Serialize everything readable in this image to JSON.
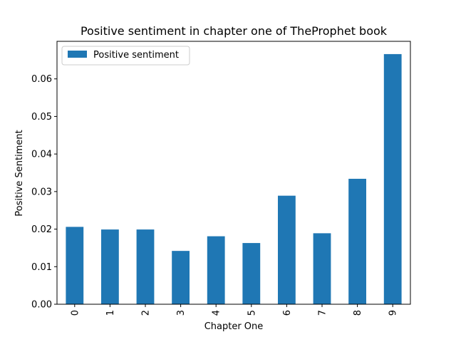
{
  "chart_data": {
    "type": "bar",
    "title": "Positive sentiment in chapter one of TheProphet book",
    "xlabel": "Chapter One",
    "ylabel": "Positive Sentiment",
    "categories": [
      "0",
      "1",
      "2",
      "3",
      "4",
      "5",
      "6",
      "7",
      "8",
      "9"
    ],
    "series": [
      {
        "name": "Positive sentiment",
        "values": [
          0.0206,
          0.0199,
          0.0199,
          0.0142,
          0.0181,
          0.0163,
          0.0289,
          0.0189,
          0.0334,
          0.0666
        ]
      }
    ],
    "ylim": [
      0,
      0.07
    ],
    "yticks": [
      "0.00",
      "0.01",
      "0.02",
      "0.03",
      "0.04",
      "0.05",
      "0.06"
    ],
    "legend_position": "top-left",
    "grid": false,
    "bar_color": "#1f77b4"
  }
}
